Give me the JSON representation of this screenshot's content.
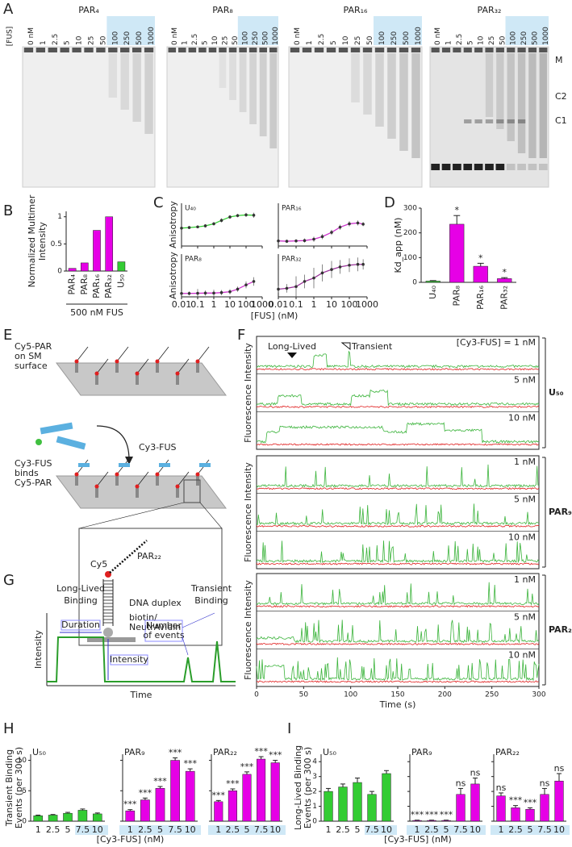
{
  "panel_letters": [
    "A",
    "B",
    "C",
    "D",
    "E",
    "F",
    "G",
    "H",
    "I"
  ],
  "gel": {
    "titles": [
      "PAR₄",
      "PAR₈",
      "PAR₁₆",
      "PAR₃₂"
    ],
    "concentration_label": "[FUS]",
    "lanes": [
      "0 nM",
      "1",
      "2.5",
      "5",
      "10",
      "25",
      "50",
      "100",
      "250",
      "500",
      "1000"
    ],
    "band_labels": [
      "M",
      "C2",
      "C1"
    ]
  },
  "multimer": {
    "ylabel": [
      "Normalized Multimer",
      "Intensity"
    ],
    "xlabel": "500 nM FUS",
    "categories": [
      "PAR₄",
      "PAR₈",
      "PAR₁₆",
      "PAR₃₂",
      "U₅₀"
    ],
    "values": [
      0.05,
      0.15,
      0.75,
      1,
      0.17
    ],
    "colors": [
      "#e600e6",
      "#e600e6",
      "#e600e6",
      "#e600e6",
      "#33cc33"
    ],
    "ylim": [
      0,
      1.1
    ],
    "yticks": [
      0,
      0.5,
      1
    ]
  },
  "anisotropy": {
    "ylabels": [
      "Anisotropy",
      "Anisotropy"
    ],
    "xlabel": "[FUS] (nM)",
    "x_scale": "log",
    "xlim": [
      0.01,
      1000
    ],
    "xticks": [
      0.01,
      0.1,
      1,
      10,
      100,
      1000
    ],
    "ylim": [
      0,
      250
    ],
    "subplots": [
      {
        "name": "U₄₀",
        "color": "#33cc33",
        "x": [
          0.01,
          0.03,
          0.1,
          0.3,
          1,
          3,
          10,
          30,
          100,
          300
        ],
        "values": [
          105,
          108,
          112,
          118,
          130,
          150,
          170,
          178,
          182,
          180
        ],
        "errors": [
          10,
          8,
          8,
          10,
          10,
          12,
          10,
          10,
          12,
          15
        ]
      },
      {
        "name": "PAR₁₆",
        "color": "#cc33cc",
        "x": [
          0.01,
          0.03,
          0.1,
          0.3,
          1,
          3,
          10,
          30,
          100,
          300,
          600
        ],
        "values": [
          30,
          28,
          30,
          32,
          40,
          55,
          80,
          110,
          130,
          135,
          128
        ],
        "errors": [
          8,
          10,
          10,
          12,
          15,
          15,
          15,
          15,
          15,
          15,
          12
        ]
      },
      {
        "name": "PAR₈",
        "color": "#cc33cc",
        "x": [
          0.01,
          0.03,
          0.1,
          0.3,
          1,
          3,
          10,
          30,
          100,
          300
        ],
        "values": [
          20,
          20,
          21,
          22,
          22,
          25,
          30,
          45,
          70,
          90
        ],
        "errors": [
          10,
          12,
          25,
          15,
          20,
          15,
          15,
          15,
          20,
          25
        ]
      },
      {
        "name": "PAR₃₂",
        "color": "#993399",
        "x": [
          0.01,
          0.03,
          0.1,
          0.3,
          1,
          3,
          10,
          30,
          100,
          300,
          600
        ],
        "values": [
          45,
          50,
          60,
          90,
          110,
          140,
          160,
          175,
          185,
          190,
          190
        ],
        "errors": [
          20,
          25,
          60,
          40,
          60,
          50,
          50,
          40,
          40,
          40,
          30
        ]
      }
    ]
  },
  "kd": {
    "ylabel": "Kd_app (nM)",
    "categories": [
      "U₄₀",
      "PAR₈",
      "PAR₁₆",
      "PAR₃₂"
    ],
    "values": [
      5,
      235,
      65,
      15
    ],
    "errors": [
      2,
      35,
      12,
      4
    ],
    "colors": [
      "#33cc33",
      "#e600e6",
      "#e600e6",
      "#e600e6"
    ],
    "significance": [
      null,
      "*",
      "*",
      "*"
    ],
    "ylim": [
      0,
      300
    ],
    "yticks": [
      0,
      100,
      200,
      300
    ]
  },
  "schematic_e": {
    "surface_label": [
      "Cy5-PAR",
      "on SM",
      "surface"
    ],
    "protein_label": "Cy3-FUS",
    "binding_label": [
      "Cy3-FUS",
      "binds",
      "Cy5-PAR"
    ],
    "dye_label": "Cy5",
    "rna_label": "PAR₂₂",
    "duplex_label": "DNA duplex",
    "anchor_label": [
      "biotin/",
      "NeutrAvidin"
    ]
  },
  "traces": {
    "ylabels": [
      "Fluorescence Intensity",
      "Fluorescence Intensity",
      "Fluorescence Intensity"
    ],
    "xlabel": "Time (s)",
    "xlim": [
      0,
      300
    ],
    "xticks": [
      0,
      50,
      100,
      150,
      200,
      250,
      300
    ],
    "annotations": [
      "Long-Lived",
      "Transient"
    ],
    "groups": [
      {
        "name": "U₅₀",
        "concentrations": [
          "[Cy3-FUS] = 1 nM",
          "5 nM",
          "10 nM"
        ]
      },
      {
        "name": "PAR₉",
        "concentrations": [
          "1 nM",
          "5 nM",
          "10 nM"
        ]
      },
      {
        "name": "PAR₂₂",
        "concentrations": [
          "1 nM",
          "5 nM",
          "10 nM"
        ]
      }
    ]
  },
  "schematic_g": {
    "ylabel": "Intensity",
    "xlabel": "Time",
    "long_lived": [
      "Long-Lived",
      "Binding"
    ],
    "transient": [
      "Transient",
      "Binding"
    ],
    "duration": "Duration",
    "intensity": "Intensity",
    "events": [
      "Number",
      "of events"
    ]
  },
  "transient_events": {
    "ylabel": [
      "Transient Binding",
      "Events (per 300 s)"
    ],
    "xlabel": "[Cy3-FUS] (nM)",
    "categories": [
      "1",
      "2.5",
      "5",
      "7.5",
      "10"
    ],
    "ylim": [
      0,
      11
    ],
    "yticks": [
      0,
      5,
      10
    ],
    "groups": [
      {
        "name": "U₅₀",
        "color": "#33cc33",
        "values": [
          0.9,
          1.0,
          1.3,
          1.8,
          1.2
        ],
        "errors": [
          0.1,
          0.1,
          0.15,
          0.2,
          0.15
        ],
        "significance": [
          null,
          null,
          null,
          null,
          null
        ]
      },
      {
        "name": "PAR₉",
        "color": "#e600e6",
        "values": [
          1.7,
          3.5,
          5.4,
          10,
          8.2
        ],
        "errors": [
          0.2,
          0.3,
          0.3,
          0.4,
          0.4
        ],
        "significance": [
          "***",
          "***",
          "***",
          "***",
          "***"
        ]
      },
      {
        "name": "PAR₂₂",
        "color": "#e600e6",
        "values": [
          3.2,
          5.0,
          7.7,
          10.2,
          9.6
        ],
        "errors": [
          0.2,
          0.3,
          0.4,
          0.4,
          0.4
        ],
        "significance": [
          "***",
          "***",
          "***",
          "***",
          "***"
        ]
      }
    ]
  },
  "long_lived_events": {
    "ylabel": [
      "Long-Lived Binding",
      "Events (per 300 s)"
    ],
    "xlabel": "[Cy3-FUS] (nM)",
    "categories": [
      "1",
      "2.5",
      "5",
      "7.5",
      "10"
    ],
    "ylim": [
      0,
      4.5
    ],
    "yticks": [
      0,
      1,
      2,
      3,
      4
    ],
    "groups": [
      {
        "name": "U₅₀",
        "color": "#33cc33",
        "values": [
          2.0,
          2.3,
          2.6,
          1.8,
          3.2
        ],
        "errors": [
          0.2,
          0.2,
          0.3,
          0.2,
          0.2
        ],
        "significance": [
          null,
          null,
          null,
          null,
          null
        ]
      },
      {
        "name": "PAR₉",
        "color": "#e600e6",
        "values": [
          0.05,
          0.05,
          0.05,
          1.8,
          2.5
        ],
        "errors": [
          0.02,
          0.02,
          0.02,
          0.4,
          0.4
        ],
        "significance": [
          "***",
          "***",
          "***",
          "ns",
          "ns"
        ]
      },
      {
        "name": "PAR₂₂",
        "color": "#e600e6",
        "values": [
          1.7,
          0.9,
          0.8,
          1.8,
          2.7
        ],
        "errors": [
          0.2,
          0.15,
          0.1,
          0.4,
          0.5
        ],
        "significance": [
          "ns",
          "***",
          "***",
          "ns",
          "ns"
        ]
      }
    ]
  }
}
